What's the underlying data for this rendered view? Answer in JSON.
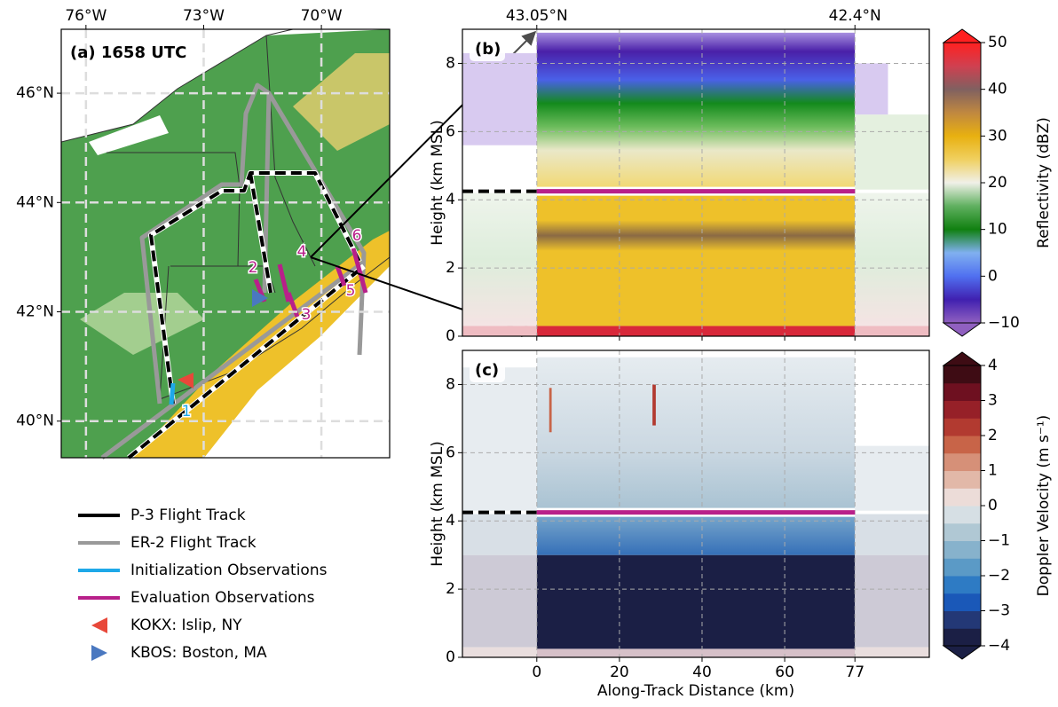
{
  "map": {
    "label": "(a) 1658 UTC",
    "xlim": [
      -76.63,
      -68.26
    ],
    "ylim": [
      39.33,
      47.17
    ],
    "xticks": [
      {
        "value": -76,
        "label": "76°W"
      },
      {
        "value": -73,
        "label": "73°W"
      },
      {
        "value": -70,
        "label": "70°W"
      }
    ],
    "yticks": [
      {
        "value": 40,
        "label": "40°N"
      },
      {
        "value": 42,
        "label": "42°N"
      },
      {
        "value": 44,
        "label": "44°N"
      },
      {
        "value": 46,
        "label": "46°N"
      }
    ],
    "segment_labels": [
      "1",
      "2",
      "3",
      "4",
      "5",
      "6"
    ]
  },
  "legend": [
    {
      "name": "P-3 Flight Track",
      "color": "#000000",
      "marker": "line"
    },
    {
      "name": "ER-2 Flight Track",
      "color": "#999999",
      "marker": "line"
    },
    {
      "name": "Initialization Observations",
      "color": "#1ea8e8",
      "marker": "line"
    },
    {
      "name": "Evaluation Observations",
      "color": "#b8208a",
      "marker": "line"
    },
    {
      "name": "KOKX: Islip, NY",
      "color": "#e8483a",
      "marker": "triangle-left"
    },
    {
      "name": "KBOS: Boston, MA",
      "color": "#4a78c0",
      "marker": "triangle-right"
    }
  ],
  "cross_sections": {
    "xlim": [
      -18,
      95
    ],
    "ylim": [
      0,
      9
    ],
    "xticks": [
      0,
      20,
      40,
      60,
      77
    ],
    "yticks": [
      0,
      2,
      4,
      6,
      8
    ],
    "xlabel": "Along-Track Distance (km)",
    "ylabel": "Height (km MSL)",
    "top_ticks": [
      {
        "value": 0,
        "label": "43.05°N"
      },
      {
        "value": 77,
        "label": "42.4°N"
      }
    ]
  },
  "panel_b": {
    "label": "(b)",
    "colorbar": {
      "label": "Reflectivity (dBZ)",
      "lim": [
        -10,
        50
      ],
      "ticks": [
        {
          "value": -10,
          "label": "−10"
        },
        0,
        10,
        20,
        30,
        40,
        50
      ],
      "colors": [
        "#9060c0",
        "#4020b0",
        "#5070f0",
        "#80b0f0",
        "#108010",
        "#60b060",
        "#f0f0e8",
        "#f0d060",
        "#e8b010",
        "#c08840",
        "#806060",
        "#d04050",
        "#ff2020"
      ]
    }
  },
  "panel_c": {
    "label": "(c)",
    "colorbar": {
      "label": "Doppler Velocity (m s⁻¹)",
      "lim": [
        -4,
        4
      ],
      "ticks": [
        {
          "value": -4,
          "label": "−4"
        },
        {
          "value": -3,
          "label": "−3"
        },
        {
          "value": -2,
          "label": "−2"
        },
        {
          "value": -1,
          "label": "−1"
        },
        0,
        1,
        2,
        3,
        4
      ],
      "colors": [
        "#1b1f45",
        "#233876",
        "#1a58b8",
        "#2e7bc4",
        "#5b9ac6",
        "#87b2cc",
        "#b0c8d4",
        "#d6dfe4",
        "#ecdcd8",
        "#e2b8a8",
        "#d69078",
        "#c86448",
        "#b23a30",
        "#962028",
        "#6e1020",
        "#3e0c14"
      ]
    }
  }
}
